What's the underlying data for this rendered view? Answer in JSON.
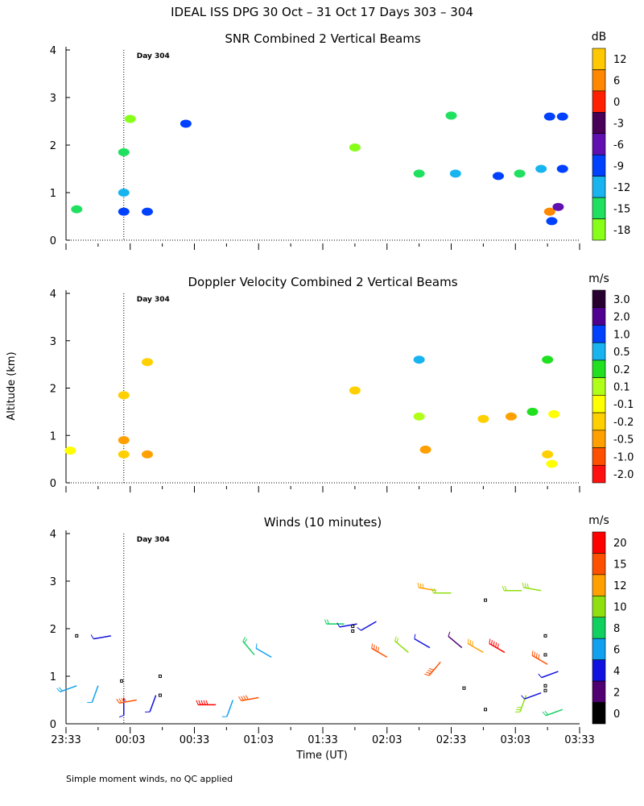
{
  "figure": {
    "title": "IDEAL ISS DPG  30 Oct – 31 Oct 17 Days 303 – 304",
    "ylabel": "Altitude (km)",
    "xlabel": "Time (UT)",
    "footnote": "Simple moment winds, no QC applied"
  },
  "chart_data": [
    {
      "type": "heatmap",
      "title": "SNR Combined 2 Vertical Beams",
      "xlabel": "Time (UT)",
      "ylabel": "Altitude (km)",
      "xticks": [
        "23:33",
        "00:03",
        "00:33",
        "01:03",
        "01:33",
        "02:03",
        "02:33",
        "03:03",
        "03:33"
      ],
      "xlim_minutes": [
        0,
        240
      ],
      "ylim": [
        0,
        4
      ],
      "yticks": [
        0,
        1,
        2,
        3,
        4
      ],
      "annotation": "Day 304",
      "day_boundary_minutes": 27,
      "colorbar": {
        "unit": "dB",
        "labels": [
          "12",
          "6",
          "0",
          "-3",
          "-6",
          "-9",
          "-12",
          "-15",
          "-18"
        ],
        "colors": [
          "#ffc800",
          "#ff8800",
          "#ff2000",
          "#480058",
          "#6010b0",
          "#0040ff",
          "#18b4f0",
          "#20e060",
          "#88ff18"
        ]
      },
      "echoes": [
        {
          "t": 27,
          "z": 0.6,
          "v": -9
        },
        {
          "t": 38,
          "z": 0.6,
          "v": -9
        },
        {
          "t": 27,
          "z": 1.0,
          "v": -12
        },
        {
          "t": 5,
          "z": 0.65,
          "v": -16
        },
        {
          "t": 27,
          "z": 1.85,
          "v": -16
        },
        {
          "t": 30,
          "z": 2.55,
          "v": -17
        },
        {
          "t": 56,
          "z": 2.45,
          "v": -9
        },
        {
          "t": 135,
          "z": 1.95,
          "v": -17
        },
        {
          "t": 165,
          "z": 1.4,
          "v": -16
        },
        {
          "t": 180,
          "z": 2.62,
          "v": -16
        },
        {
          "t": 182,
          "z": 1.4,
          "v": -13
        },
        {
          "t": 202,
          "z": 1.35,
          "v": -10
        },
        {
          "t": 212,
          "z": 1.4,
          "v": -15
        },
        {
          "t": 222,
          "z": 1.5,
          "v": -13
        },
        {
          "t": 232,
          "z": 1.5,
          "v": -9
        },
        {
          "t": 226,
          "z": 2.6,
          "v": -9
        },
        {
          "t": 232,
          "z": 2.6,
          "v": -9
        },
        {
          "t": 226,
          "z": 0.6,
          "v": 6
        },
        {
          "t": 227,
          "z": 0.4,
          "v": -9
        },
        {
          "t": 230,
          "z": 0.7,
          "v": -6
        }
      ]
    },
    {
      "type": "heatmap",
      "title": "Doppler Velocity Combined 2 Vertical Beams",
      "xlabel": "Time (UT)",
      "ylabel": "Altitude (km)",
      "xticks": [
        "23:33",
        "00:03",
        "00:33",
        "01:03",
        "01:33",
        "02:03",
        "02:33",
        "03:03",
        "03:33"
      ],
      "xlim_minutes": [
        0,
        240
      ],
      "ylim": [
        0,
        4
      ],
      "yticks": [
        0,
        1,
        2,
        3,
        4
      ],
      "annotation": "Day 304",
      "colorbar": {
        "unit": "m/s",
        "labels": [
          "3.0",
          "2.0",
          "1.0",
          "0.5",
          "0.2",
          "0.1",
          "-0.1",
          "-0.2",
          "-0.5",
          "-1.0",
          "-2.0"
        ],
        "colors": [
          "#280030",
          "#500090",
          "#0040ff",
          "#18b4f0",
          "#20e020",
          "#b0ff18",
          "#ffff00",
          "#ffd000",
          "#ffa000",
          "#ff5000",
          "#ff1010"
        ]
      },
      "echoes": [
        {
          "t": 2,
          "z": 0.68,
          "v": -0.1
        },
        {
          "t": 27,
          "z": 0.6,
          "v": -0.2
        },
        {
          "t": 27,
          "z": 0.9,
          "v": -0.5
        },
        {
          "t": 27,
          "z": 1.85,
          "v": -0.2
        },
        {
          "t": 38,
          "z": 0.6,
          "v": -0.5
        },
        {
          "t": 38,
          "z": 2.55,
          "v": -0.2
        },
        {
          "t": 135,
          "z": 1.95,
          "v": -0.2
        },
        {
          "t": 165,
          "z": 1.4,
          "v": 0.1
        },
        {
          "t": 165,
          "z": 2.6,
          "v": 0.5
        },
        {
          "t": 168,
          "z": 0.7,
          "v": -0.5
        },
        {
          "t": 195,
          "z": 1.35,
          "v": -0.2
        },
        {
          "t": 208,
          "z": 1.4,
          "v": -0.5
        },
        {
          "t": 218,
          "z": 1.5,
          "v": 0.2
        },
        {
          "t": 225,
          "z": 2.6,
          "v": 0.2
        },
        {
          "t": 225,
          "z": 0.6,
          "v": -0.2
        },
        {
          "t": 227,
          "z": 0.4,
          "v": -0.1
        },
        {
          "t": 228,
          "z": 1.45,
          "v": -0.1
        }
      ]
    },
    {
      "type": "scatter",
      "title": "Winds (10 minutes)",
      "xlabel": "Time (UT)",
      "ylabel": "Altitude (km)",
      "xticks": [
        "23:33",
        "00:03",
        "00:33",
        "01:03",
        "01:33",
        "02:03",
        "02:33",
        "03:03",
        "03:33"
      ],
      "xlim_minutes": [
        0,
        240
      ],
      "ylim": [
        0,
        4
      ],
      "yticks": [
        0,
        1,
        2,
        3,
        4
      ],
      "annotation": "Day 304",
      "colorbar": {
        "unit": "m/s",
        "labels": [
          "20",
          "15",
          "12",
          "10",
          "8",
          "6",
          "4",
          "2",
          "0"
        ],
        "colors": [
          "#ff0000",
          "#ff5000",
          "#ffa000",
          "#90e010",
          "#10d060",
          "#10a0f0",
          "#1010e0",
          "#500070",
          "#000000"
        ]
      },
      "barbs": [
        {
          "t": 5,
          "z": 0.8,
          "s": 6,
          "d": 250
        },
        {
          "t": 15,
          "z": 0.8,
          "s": 5,
          "d": 200
        },
        {
          "t": 21,
          "z": 1.85,
          "s": 4,
          "d": 260
        },
        {
          "t": 27,
          "z": 0.55,
          "s": 3,
          "d": 180
        },
        {
          "t": 33,
          "z": 0.5,
          "s": 17,
          "d": 260
        },
        {
          "t": 42,
          "z": 0.6,
          "s": 3,
          "d": 200
        },
        {
          "t": 70,
          "z": 0.4,
          "s": 18,
          "d": 270
        },
        {
          "t": 78,
          "z": 0.5,
          "s": 5,
          "d": 200
        },
        {
          "t": 90,
          "z": 0.55,
          "s": 16,
          "d": 260
        },
        {
          "t": 88,
          "z": 1.45,
          "s": 7,
          "d": 320
        },
        {
          "t": 96,
          "z": 1.4,
          "s": 5,
          "d": 300
        },
        {
          "t": 130,
          "z": 2.1,
          "s": 7,
          "d": 270
        },
        {
          "t": 136,
          "z": 2.1,
          "s": 3,
          "d": 260
        },
        {
          "t": 145,
          "z": 2.15,
          "s": 3,
          "d": 240
        },
        {
          "t": 150,
          "z": 1.4,
          "s": 17,
          "d": 300
        },
        {
          "t": 160,
          "z": 1.5,
          "s": 9,
          "d": 310
        },
        {
          "t": 173,
          "z": 2.8,
          "s": 11,
          "d": 280
        },
        {
          "t": 180,
          "z": 2.75,
          "s": 9,
          "d": 270
        },
        {
          "t": 170,
          "z": 1.6,
          "s": 3,
          "d": 300
        },
        {
          "t": 175,
          "z": 1.3,
          "s": 14,
          "d": 220
        },
        {
          "t": 185,
          "z": 1.6,
          "s": 2,
          "d": 310
        },
        {
          "t": 195,
          "z": 1.5,
          "s": 11,
          "d": 300
        },
        {
          "t": 205,
          "z": 1.5,
          "s": 20,
          "d": 300
        },
        {
          "t": 213,
          "z": 2.8,
          "s": 9,
          "d": 270
        },
        {
          "t": 222,
          "z": 2.8,
          "s": 10,
          "d": 280
        },
        {
          "t": 225,
          "z": 1.25,
          "s": 15,
          "d": 300
        },
        {
          "t": 230,
          "z": 1.1,
          "s": 3,
          "d": 250
        },
        {
          "t": 215,
          "z": 0.6,
          "s": 10,
          "d": 200
        },
        {
          "t": 222,
          "z": 0.65,
          "s": 3,
          "d": 250
        },
        {
          "t": 232,
          "z": 0.3,
          "s": 8,
          "d": 250
        }
      ],
      "markers": [
        {
          "t": 5,
          "z": 1.85
        },
        {
          "t": 26,
          "z": 0.9
        },
        {
          "t": 44,
          "z": 1.0
        },
        {
          "t": 44,
          "z": 0.6
        },
        {
          "t": 134,
          "z": 2.05
        },
        {
          "t": 134,
          "z": 1.95
        },
        {
          "t": 186,
          "z": 0.75
        },
        {
          "t": 196,
          "z": 2.6
        },
        {
          "t": 196,
          "z": 0.3
        },
        {
          "t": 224,
          "z": 1.85
        },
        {
          "t": 224,
          "z": 1.45
        },
        {
          "t": 224,
          "z": 0.8
        },
        {
          "t": 224,
          "z": 0.7
        }
      ]
    }
  ]
}
